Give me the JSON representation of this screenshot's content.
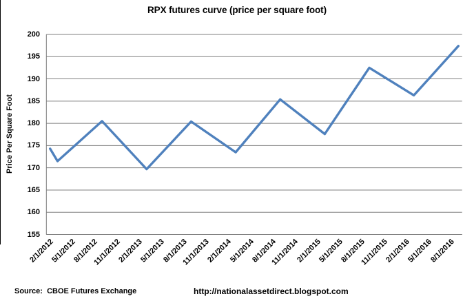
{
  "page": {
    "title": "RPX futures curve (price per square foot)"
  },
  "footer": {
    "source_label": "Source:  CBOE Futures Exchange",
    "url": "http://nationalassetdirect.blogspot.com"
  },
  "chart_data": {
    "type": "line",
    "title": "RPX futures curve (price per square foot)",
    "xlabel": "",
    "ylabel": "Price Per Square Foot",
    "ylim": [
      155,
      200
    ],
    "yticks": [
      155,
      160,
      165,
      170,
      175,
      180,
      185,
      190,
      195,
      200
    ],
    "x_tick_labels": [
      "2/1/2012",
      "5/1/2012",
      "8/1/2012",
      "11/1/2012",
      "2/1/2013",
      "5/1/2013",
      "8/1/2013",
      "11/1/2013",
      "2/1/2014",
      "5/1/2014",
      "8/1/2014",
      "11/1/2014",
      "2/1/2015",
      "5/1/2015",
      "8/1/2015",
      "11/1/2015",
      "2/1/2016",
      "5/1/2016",
      "8/1/2016"
    ],
    "label_every_n_categories": 3,
    "total_categories": 56,
    "grid": true,
    "legend": false,
    "line_color": "#4F81BD",
    "grid_color": "#7f7f7f",
    "axis_color": "#7f7f7f",
    "series": [
      {
        "name": "RPX futures (price per square foot)",
        "points": [
          {
            "x": "2/1/2012",
            "month_index": 0,
            "value": 174.3
          },
          {
            "x": "3/1/2012",
            "month_index": 1,
            "value": 171.5
          },
          {
            "x": "9/1/2012",
            "month_index": 7,
            "value": 180.5
          },
          {
            "x": "3/1/2013",
            "month_index": 13,
            "value": 169.7
          },
          {
            "x": "9/1/2013",
            "month_index": 19,
            "value": 180.4
          },
          {
            "x": "3/1/2014",
            "month_index": 25,
            "value": 173.5
          },
          {
            "x": "9/1/2014",
            "month_index": 31,
            "value": 185.4
          },
          {
            "x": "3/1/2015",
            "month_index": 37,
            "value": 177.6
          },
          {
            "x": "9/1/2015",
            "month_index": 43,
            "value": 192.5
          },
          {
            "x": "3/1/2016",
            "month_index": 49,
            "value": 186.3
          },
          {
            "x": "9/1/2016",
            "month_index": 55,
            "value": 197.4
          }
        ]
      }
    ]
  }
}
